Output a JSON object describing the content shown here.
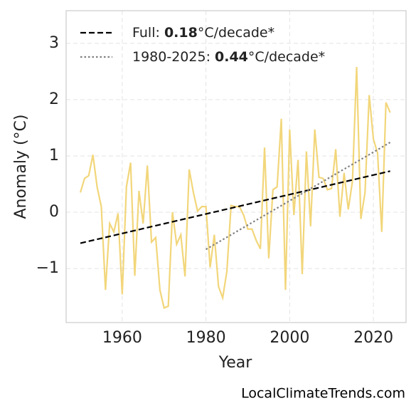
{
  "chart_data": {
    "type": "line",
    "xlabel": "Year",
    "ylabel": "Anomaly (°C)",
    "watermark": "LocalClimateTrends.com",
    "xlim": [
      1946.6,
      2027.8
    ],
    "ylim": [
      -1.96,
      3.58
    ],
    "xticks": [
      1960,
      1980,
      2000,
      2020
    ],
    "yticks": [
      {
        "value": -1,
        "label": "−1"
      },
      0,
      1,
      2,
      3
    ],
    "grid": true,
    "legend": "upper left",
    "series": [
      {
        "name": "Anomaly",
        "color": "#f2d67a",
        "style": "solid",
        "in_legend": false,
        "x": [
          1950,
          1951,
          1952,
          1953,
          1954,
          1955,
          1956,
          1957,
          1958,
          1959,
          1960,
          1961,
          1962,
          1963,
          1964,
          1965,
          1966,
          1967,
          1968,
          1969,
          1970,
          1971,
          1972,
          1973,
          1974,
          1975,
          1976,
          1977,
          1978,
          1979,
          1980,
          1981,
          1982,
          1983,
          1984,
          1985,
          1986,
          1987,
          1988,
          1989,
          1990,
          1991,
          1992,
          1993,
          1994,
          1995,
          1996,
          1997,
          1998,
          1999,
          2000,
          2001,
          2002,
          2003,
          2004,
          2005,
          2006,
          2007,
          2008,
          2009,
          2010,
          2011,
          2012,
          2013,
          2014,
          2015,
          2016,
          2017,
          2018,
          2019,
          2020,
          2021,
          2022,
          2023,
          2024
        ],
        "values": [
          0.35,
          0.6,
          0.65,
          1.02,
          0.45,
          0.1,
          -1.38,
          -0.2,
          -0.35,
          -0.02,
          -1.46,
          0.45,
          0.88,
          -1.13,
          0.38,
          -0.2,
          0.83,
          -0.53,
          -0.45,
          -1.38,
          -1.7,
          -1.67,
          0.0,
          -0.57,
          -0.4,
          -1.14,
          0.76,
          0.35,
          0.02,
          0.1,
          0.1,
          -0.98,
          -0.4,
          -1.32,
          -1.52,
          -1.05,
          0.12,
          0.1,
          0.1,
          -0.05,
          -0.3,
          -0.3,
          -0.5,
          -0.65,
          1.15,
          -0.82,
          0.4,
          0.45,
          1.66,
          -1.38,
          1.47,
          -0.05,
          0.93,
          -1.1,
          1.08,
          -0.25,
          1.47,
          0.62,
          0.6,
          0.4,
          0.42,
          1.12,
          -0.08,
          0.7,
          0.05,
          0.55,
          2.58,
          -0.12,
          0.35,
          2.08,
          1.3,
          1.05,
          -0.35,
          1.95,
          1.77
        ]
      },
      {
        "color": "#000000",
        "style": "dashed",
        "in_legend": true,
        "legend_label": {
          "prefix": "Full: ",
          "rate": "0.18",
          "unit": "°C/decade*"
        },
        "x": [
          1950,
          2024
        ],
        "values": [
          -0.55,
          0.73
        ]
      },
      {
        "color": "#808080",
        "style": "dotted",
        "in_legend": true,
        "legend_label": {
          "prefix": "1980-2025: ",
          "rate": "0.44",
          "unit": "°C/decade*"
        },
        "x": [
          1980,
          2024
        ],
        "values": [
          -0.66,
          1.24
        ]
      }
    ]
  }
}
